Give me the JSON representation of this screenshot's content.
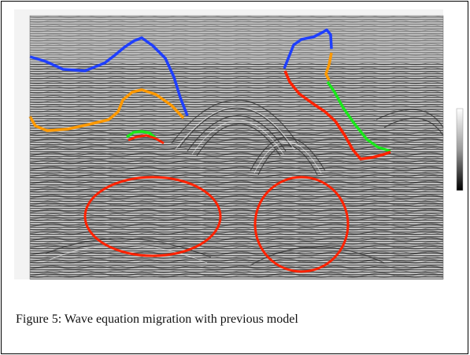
{
  "caption": "Figure 5: Wave equation migration with previous model",
  "colors": {
    "horizon_top": "#1f3fff",
    "horizon_orange": "#ff9900",
    "horizon_green": "#1be81b",
    "horizon_red": "#ff2200",
    "highlight_ellipses": "#ff2200"
  }
}
